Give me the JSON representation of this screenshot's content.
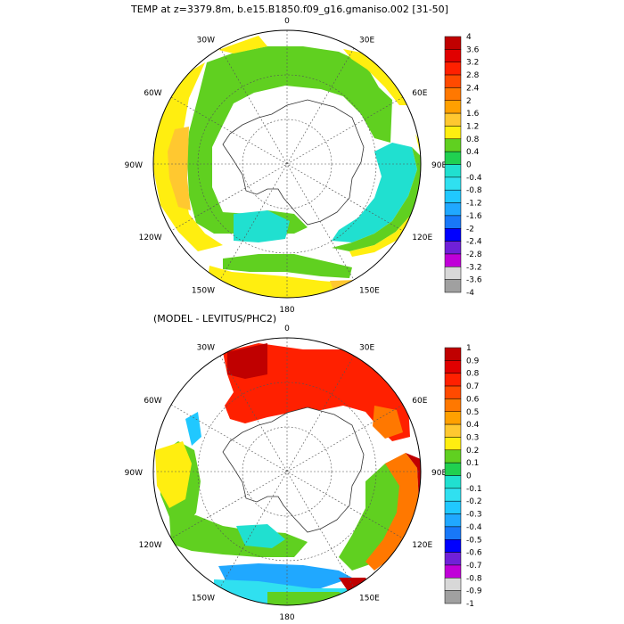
{
  "figure": {
    "title": "TEMP at z=3379.8m, b.e15.B1850.f09_g16.gmaniso.002 [31-50]",
    "subtitle": "(MODEL - LEVITUS/PHC2)"
  },
  "maps": [
    {
      "id": "model-temp",
      "colorbar": {
        "labels": [
          "4",
          "3.6",
          "3.2",
          "2.8",
          "2.4",
          "2",
          "1.6",
          "1.2",
          "0.8",
          "0.4",
          "0",
          "-0.4",
          "-0.8",
          "-1.2",
          "-1.6",
          "-2",
          "-2.4",
          "-2.8",
          "-3.2",
          "-3.6",
          "-4"
        ],
        "colors": [
          "#c00000",
          "#e00000",
          "#ff2000",
          "#ff4a00",
          "#ff7800",
          "#ffa000",
          "#ffc830",
          "#ffee10",
          "#60d020",
          "#20d050",
          "#20e0d0",
          "#30e0f0",
          "#20c8ff",
          "#20a8ff",
          "#1878f8",
          "#0000ff",
          "#7020d8",
          "#c000d8",
          "#d8d8d8",
          "#a0a0a0"
        ]
      }
    },
    {
      "id": "model-minus-obs",
      "colorbar": {
        "labels": [
          "1",
          "0.9",
          "0.8",
          "0.7",
          "0.6",
          "0.5",
          "0.4",
          "0.3",
          "0.2",
          "0.1",
          "0",
          "-0.1",
          "-0.2",
          "-0.3",
          "-0.4",
          "-0.5",
          "-0.6",
          "-0.7",
          "-0.8",
          "-0.9",
          "-1"
        ],
        "colors": [
          "#c00000",
          "#e00000",
          "#ff2000",
          "#ff4a00",
          "#ff7800",
          "#ffa000",
          "#ffc830",
          "#ffee10",
          "#60d020",
          "#20d050",
          "#20e0d0",
          "#30e0f0",
          "#20c8ff",
          "#20a8ff",
          "#1878f8",
          "#0000ff",
          "#7020d8",
          "#c000d8",
          "#d8d8d8",
          "#a0a0a0"
        ]
      }
    }
  ],
  "longitude_labels": [
    {
      "text": "0",
      "lon": 0
    },
    {
      "text": "30E",
      "lon": 30
    },
    {
      "text": "60E",
      "lon": 60
    },
    {
      "text": "90E",
      "lon": 90
    },
    {
      "text": "120E",
      "lon": 120
    },
    {
      "text": "150E",
      "lon": 150
    },
    {
      "text": "180",
      "lon": 180
    },
    {
      "text": "150W",
      "lon": 210
    },
    {
      "text": "120W",
      "lon": 240
    },
    {
      "text": "90W",
      "lon": 270
    },
    {
      "text": "60W",
      "lon": 300
    },
    {
      "text": "30W",
      "lon": 330
    }
  ]
}
